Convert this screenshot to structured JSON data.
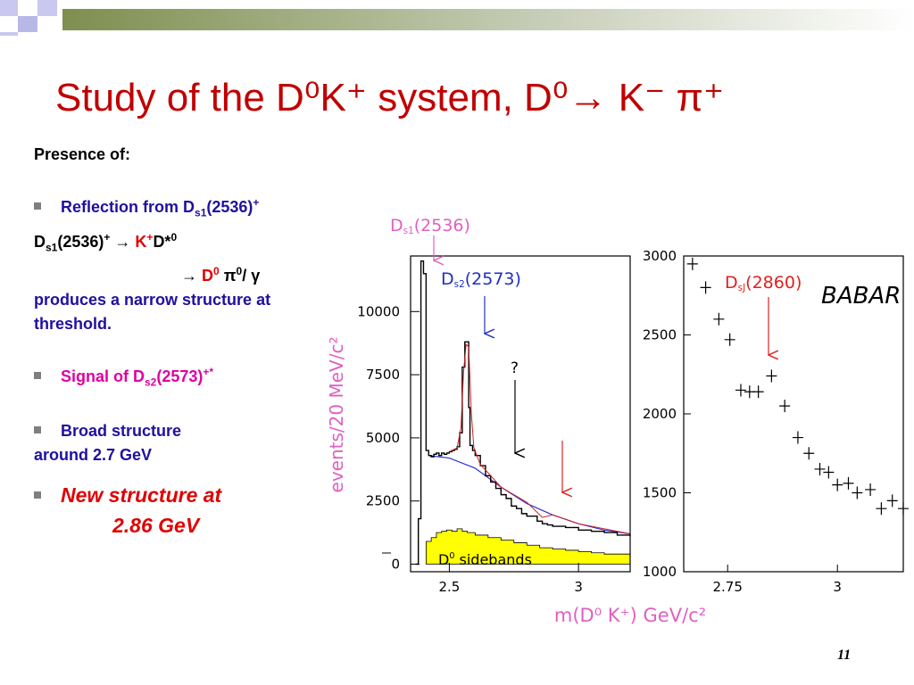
{
  "slide": {
    "title": "Study of the D⁰K⁺ system, D⁰→ K⁻ π⁺",
    "page_number": "11"
  },
  "text": {
    "presence": "Presence of:",
    "b1": {
      "t1": "Reflection from D",
      "t1sub": "s1",
      "t1b": "(2536)",
      "t1sup": "+"
    },
    "l1": {
      "a": "D",
      "asub": "s1",
      "b": "(2536)",
      "bsup": "+",
      "arrow": " → ",
      "k": "K",
      "ksup": "+",
      "d": "D*",
      "dsup": "0"
    },
    "l2": {
      "arrow": "→ ",
      "d": "D",
      "dsup": "0",
      "pi": " π",
      "pisup": "0",
      "rest": "/ γ"
    },
    "l3": "produces a narrow structure at threshold.",
    "b2": {
      "a": "Signal of D",
      "asub": "s2",
      "b": "(2573)",
      "bsup": "+*"
    },
    "b3": {
      "a": "Broad structure",
      "b": "around 2.7 GeV"
    },
    "b4": {
      "a": "New structure at",
      "b": "2.86 GeV"
    }
  },
  "chart_data": {
    "type": "line",
    "xlabel": "m(D⁰ K⁺) GeV/c²",
    "ylabel": "events/20 MeV/c²",
    "experiment": "BABAR",
    "panels": [
      {
        "name": "main",
        "xlim": [
          2.35,
          3.2
        ],
        "ylim": [
          -300,
          12200
        ],
        "x_ticks": [
          "2.5",
          "3"
        ],
        "y_ticks": [
          "0",
          "2500",
          "5000",
          "7500",
          "10000"
        ],
        "histogram": {
          "x": [
            2.37,
            2.38,
            2.39,
            2.4,
            2.41,
            2.42,
            2.43,
            2.44,
            2.45,
            2.46,
            2.47,
            2.48,
            2.49,
            2.5,
            2.51,
            2.52,
            2.53,
            2.54,
            2.55,
            2.56,
            2.57,
            2.575,
            2.58,
            2.59,
            2.6,
            2.62,
            2.64,
            2.66,
            2.68,
            2.7,
            2.72,
            2.74,
            2.76,
            2.78,
            2.8,
            2.82,
            2.84,
            2.86,
            2.88,
            2.9,
            2.95,
            3.0,
            3.05,
            3.1,
            3.15,
            3.2
          ],
          "y": [
            0,
            1800,
            12000,
            11500,
            4500,
            4300,
            4250,
            4350,
            4400,
            4300,
            4400,
            4350,
            4400,
            4450,
            4500,
            4550,
            4650,
            5200,
            7800,
            8800,
            8800,
            6200,
            4700,
            4500,
            4300,
            3900,
            3500,
            3250,
            3000,
            2750,
            2600,
            2300,
            2200,
            2000,
            1900,
            1900,
            1700,
            1600,
            1550,
            1500,
            1450,
            1350,
            1300,
            1250,
            1150,
            1100
          ]
        },
        "fit_background": {
          "x": [
            2.42,
            2.5,
            2.6,
            2.7,
            2.8,
            2.9,
            3.0,
            3.1,
            3.2
          ],
          "y": [
            4300,
            4200,
            3800,
            3050,
            2400,
            1950,
            1600,
            1350,
            1200
          ]
        },
        "sidebands": {
          "x": [
            2.41,
            2.43,
            2.45,
            2.47,
            2.49,
            2.51,
            2.53,
            2.55,
            2.57,
            2.6,
            2.65,
            2.7,
            2.75,
            2.8,
            2.85,
            2.9,
            2.95,
            3.0,
            3.05,
            3.1,
            3.2
          ],
          "y": [
            900,
            1050,
            1250,
            1300,
            1350,
            1300,
            1400,
            1300,
            1250,
            1150,
            1050,
            950,
            850,
            750,
            650,
            600,
            550,
            500,
            450,
            400,
            300
          ]
        },
        "annotations": [
          {
            "text": "Ds1(2536)",
            "main": "D",
            "sub": "s1",
            "rest": "(2536)",
            "x": 2.536,
            "color": "#e060c0"
          },
          {
            "text": "Ds2(2573)",
            "main": "D",
            "sub": "s2",
            "rest": "(2573)",
            "x": 2.573,
            "color": "#2030c0"
          },
          {
            "text": "?",
            "x": 2.7,
            "color": "#000000"
          },
          {
            "x": 2.86,
            "color": "#e02020"
          },
          {
            "text": "D⁰ sidebands",
            "main": "D",
            "sup": "0",
            "rest": " sidebands"
          }
        ]
      },
      {
        "name": "zoom",
        "xlim": [
          2.65,
          3.15
        ],
        "ylim": [
          1000,
          3000
        ],
        "x_ticks": [
          "2.75",
          "3"
        ],
        "y_ticks": [
          "1000",
          "1500",
          "2000",
          "2500",
          "3000"
        ],
        "points": {
          "x": [
            2.67,
            2.7,
            2.73,
            2.755,
            2.78,
            2.8,
            2.82,
            2.85,
            2.88,
            2.91,
            2.935,
            2.96,
            2.98,
            3.0,
            3.025,
            3.045,
            3.075,
            3.1,
            3.125,
            3.15
          ],
          "y": [
            2950,
            2800,
            2600,
            2470,
            2150,
            2140,
            2140,
            2240,
            2050,
            1850,
            1750,
            1650,
            1630,
            1550,
            1560,
            1500,
            1520,
            1400,
            1450,
            1400
          ]
        },
        "annotations": [
          {
            "text": "DsJ(2860)",
            "main": "D",
            "sub": "sJ",
            "rest": "(2860)",
            "x": 2.86,
            "color": "#e02020"
          }
        ]
      }
    ]
  },
  "colors": {
    "title": "#c00000",
    "sidebands_fill": "#ffff00",
    "fit_line": "#3030d0",
    "hist_fit": "#d02020",
    "axis_label": "#e060c0"
  }
}
